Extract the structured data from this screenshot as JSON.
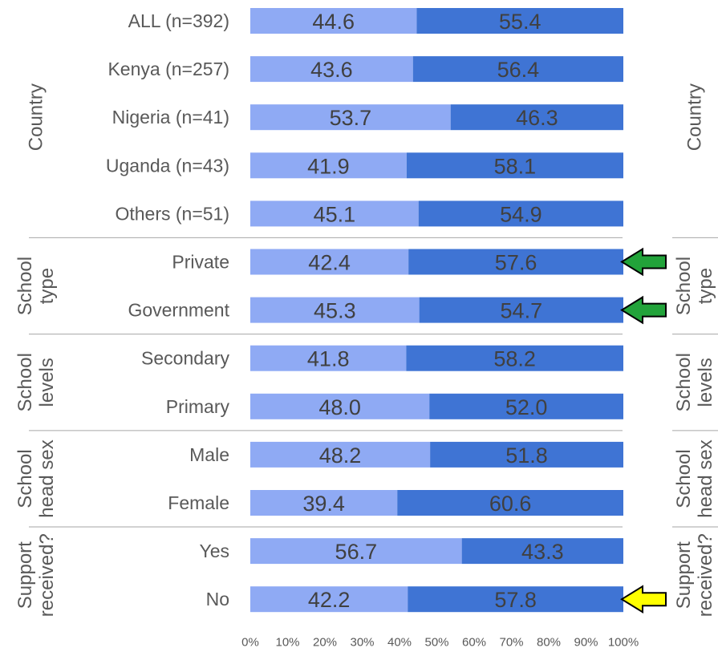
{
  "chart_data": {
    "type": "bar",
    "stacked": true,
    "orientation": "horizontal",
    "categories": [
      "ALL (n=392)",
      "Kenya (n=257)",
      "Nigeria (n=41)",
      "Uganda (n=43)",
      "Others (n=51)",
      "Private",
      "Government",
      "Secondary",
      "Primary",
      "Male",
      "Female",
      "Yes",
      "No"
    ],
    "series": [
      {
        "color": "#8faaf4",
        "values": [
          44.6,
          43.6,
          53.7,
          41.9,
          45.1,
          42.4,
          45.3,
          41.8,
          48.0,
          48.2,
          39.4,
          56.7,
          42.2
        ],
        "labels": [
          "44.6",
          "43.6",
          "53.7",
          "41.9",
          "45.1",
          "42.4",
          "45.3",
          "41.8",
          "48.0",
          "48.2",
          "39.4",
          "56.7",
          "42.2"
        ]
      },
      {
        "color": "#3f74d4",
        "values": [
          55.4,
          56.4,
          46.3,
          58.1,
          54.9,
          57.6,
          54.7,
          58.2,
          52.0,
          51.8,
          60.6,
          43.3,
          57.8
        ],
        "labels": [
          "55.4",
          "56.4",
          "46.3",
          "58.1",
          "54.9",
          "57.6",
          "54.7",
          "58.2",
          "52.0",
          "51.8",
          "60.6",
          "43.3",
          "57.8"
        ]
      }
    ],
    "groups": [
      {
        "label": [
          "Country"
        ],
        "first": 0,
        "last": 4
      },
      {
        "label": [
          "School",
          "type"
        ],
        "first": 5,
        "last": 6
      },
      {
        "label": [
          "School",
          "levels"
        ],
        "first": 7,
        "last": 8
      },
      {
        "label": [
          "School",
          "head sex"
        ],
        "first": 9,
        "last": 10
      },
      {
        "label": [
          "Support",
          "received?"
        ],
        "first": 11,
        "last": 12
      }
    ],
    "xlim": [
      0,
      100
    ],
    "x_ticks": [
      "0%",
      "10%",
      "20%",
      "30%",
      "40%",
      "50%",
      "60%",
      "70%",
      "80%",
      "90%",
      "100%"
    ],
    "grid": false,
    "legend": "none",
    "annotations": [
      {
        "category": "Private",
        "marker": "arrow",
        "color": "#22a33a"
      },
      {
        "category": "Government",
        "marker": "arrow",
        "color": "#22a33a"
      },
      {
        "category": "No",
        "marker": "arrow",
        "color": "#ffff00"
      }
    ]
  }
}
